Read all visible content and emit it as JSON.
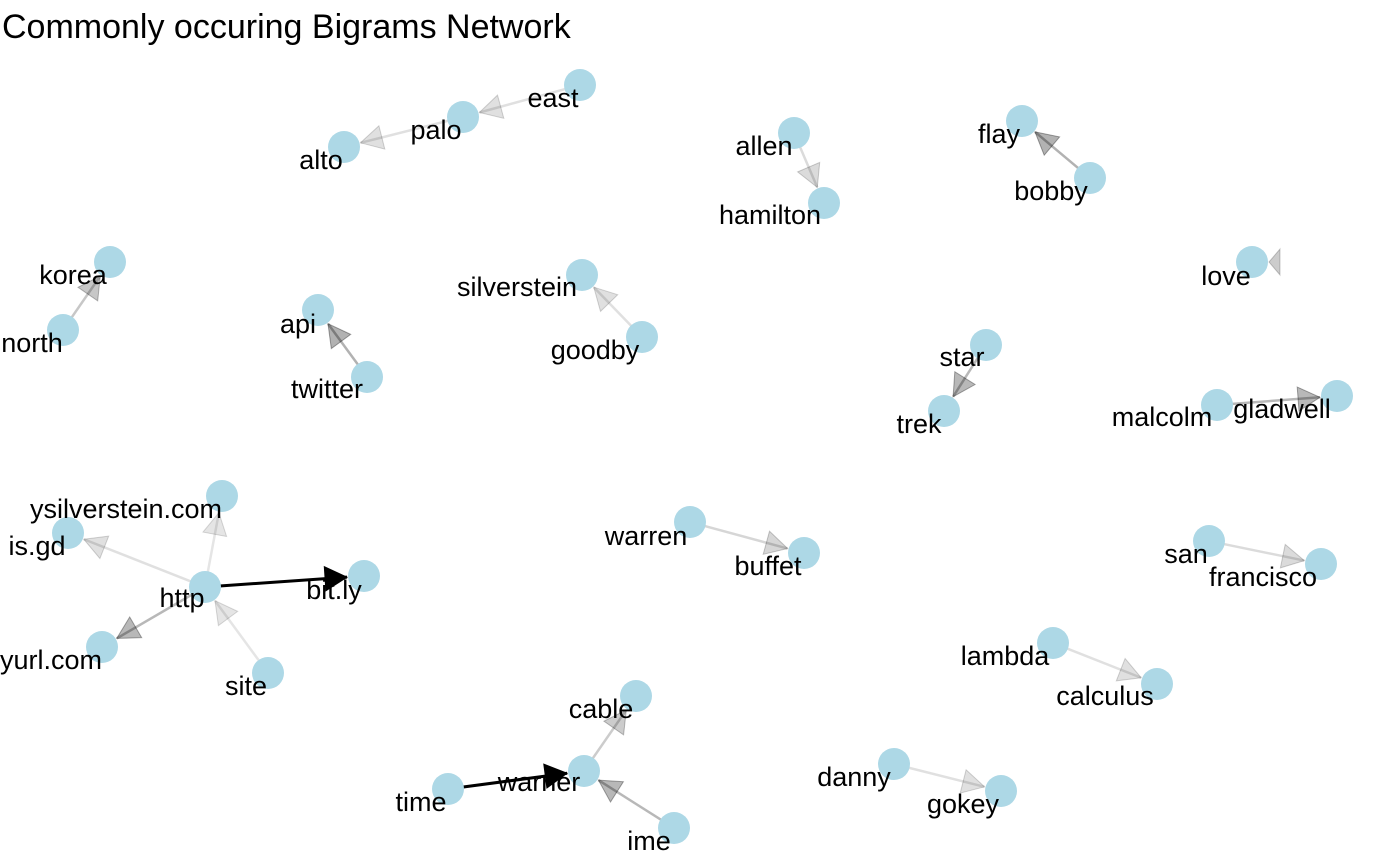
{
  "title": "Commonly occuring Bigrams Network",
  "colors": {
    "node": "#add8e6",
    "edge": "#000000",
    "label": "#000000",
    "background": "#ffffff"
  },
  "chart_data": {
    "type": "network",
    "title": "Commonly occuring Bigrams Network",
    "directed": true,
    "nodes": [
      "east",
      "palo",
      "alto",
      "allen",
      "hamilton",
      "bobby",
      "flay",
      "korea",
      "north",
      "silverstein",
      "goodby",
      "api",
      "twitter",
      "love",
      "star",
      "trek",
      "malcolm",
      "gladwell",
      "shelbysilverstein.com",
      "is.gd",
      "http",
      "bit.ly",
      "tinyurl.com",
      "site",
      "warren",
      "buffet",
      "san",
      "francisco",
      "lambda",
      "calculus",
      "cable",
      "time",
      "warner",
      "ime",
      "danny",
      "gokey"
    ],
    "node_labels": {
      "shelbysilverstein.com": "ysilverstein.com",
      "tinyurl.com": "yurl.com"
    },
    "edges": [
      {
        "from": "east",
        "to": "palo",
        "alpha": 0.12
      },
      {
        "from": "palo",
        "to": "alto",
        "alpha": 0.12
      },
      {
        "from": "allen",
        "to": "hamilton",
        "alpha": 0.14
      },
      {
        "from": "bobby",
        "to": "flay",
        "alpha": 0.3
      },
      {
        "from": "north",
        "to": "korea",
        "alpha": 0.22
      },
      {
        "from": "goodby",
        "to": "silverstein",
        "alpha": 0.12
      },
      {
        "from": "twitter",
        "to": "api",
        "alpha": 0.3
      },
      {
        "from": "love",
        "to": "love",
        "alpha": 0.2
      },
      {
        "from": "star",
        "to": "trek",
        "alpha": 0.28
      },
      {
        "from": "malcolm",
        "to": "gladwell",
        "alpha": 0.28
      },
      {
        "from": "http",
        "to": "bit.ly",
        "alpha": 1.0
      },
      {
        "from": "http",
        "to": "is.gd",
        "alpha": 0.12
      },
      {
        "from": "http",
        "to": "shelbysilverstein.com",
        "alpha": 0.1
      },
      {
        "from": "http",
        "to": "tinyurl.com",
        "alpha": 0.28
      },
      {
        "from": "site",
        "to": "http",
        "alpha": 0.1
      },
      {
        "from": "warren",
        "to": "buffet",
        "alpha": 0.16
      },
      {
        "from": "san",
        "to": "francisco",
        "alpha": 0.14
      },
      {
        "from": "lambda",
        "to": "calculus",
        "alpha": 0.12
      },
      {
        "from": "time",
        "to": "warner",
        "alpha": 1.0
      },
      {
        "from": "warner",
        "to": "cable",
        "alpha": 0.2
      },
      {
        "from": "ime",
        "to": "warner",
        "alpha": 0.28
      },
      {
        "from": "danny",
        "to": "gokey",
        "alpha": 0.12
      }
    ]
  }
}
